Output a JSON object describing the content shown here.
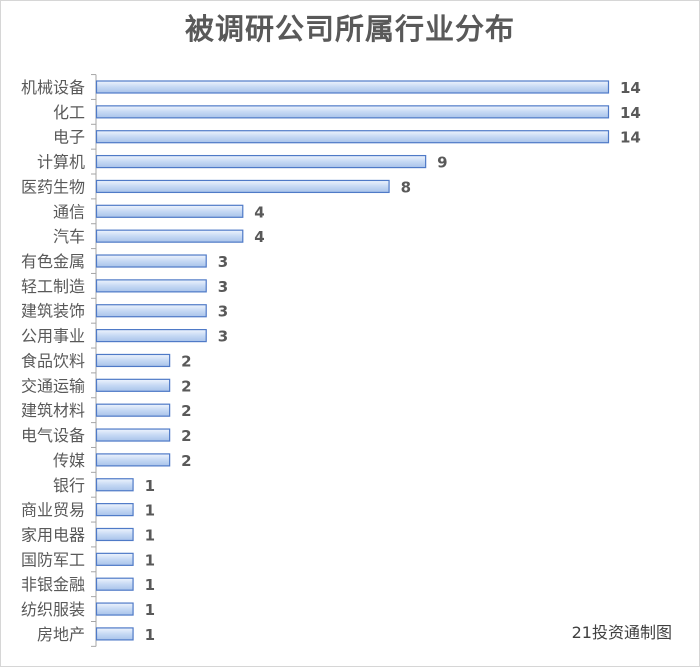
{
  "chart_data": {
    "type": "bar",
    "orientation": "horizontal",
    "title": "被调研公司所属行业分布",
    "categories": [
      "机械设备",
      "化工",
      "电子",
      "计算机",
      "医药生物",
      "通信",
      "汽车",
      "有色金属",
      "轻工制造",
      "建筑装饰",
      "公用事业",
      "食品饮料",
      "交通运输",
      "建筑材料",
      "电气设备",
      "传媒",
      "银行",
      "商业贸易",
      "家用电器",
      "国防军工",
      "非银金融",
      "纺织服装",
      "房地产"
    ],
    "values": [
      14,
      14,
      14,
      9,
      8,
      4,
      4,
      3,
      3,
      3,
      3,
      2,
      2,
      2,
      2,
      2,
      1,
      1,
      1,
      1,
      1,
      1,
      1
    ],
    "xlim": [
      0,
      14
    ],
    "grid": false,
    "legend": "none",
    "data_labels": true,
    "colors": {
      "bar_fill": "#c6d9f4",
      "bar_stroke": "#4f7ac7",
      "axis": "#a6a6a6",
      "label": "#595959"
    }
  },
  "source_note": "21投资通制图"
}
